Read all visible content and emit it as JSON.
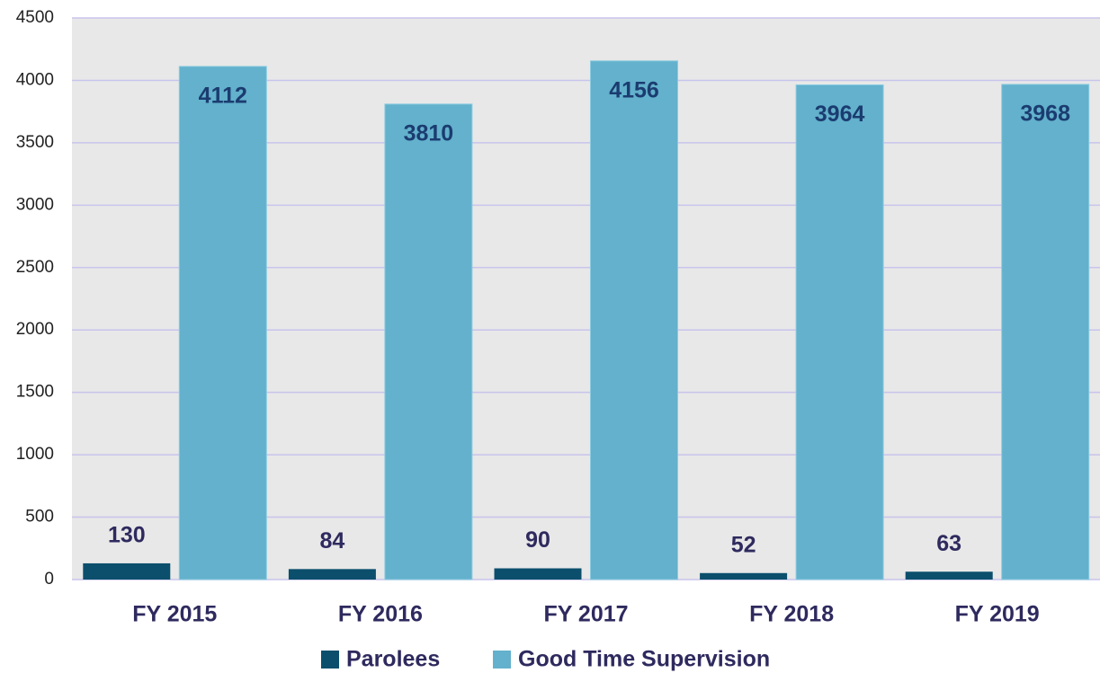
{
  "chart_data": {
    "type": "bar",
    "categories": [
      "FY 2015",
      "FY 2016",
      "FY 2017",
      "FY 2018",
      "FY 2019"
    ],
    "series": [
      {
        "name": "Parolees",
        "color": "#0b4f6c",
        "values": [
          130,
          84,
          90,
          52,
          63
        ]
      },
      {
        "name": "Good Time Supervision",
        "color": "#63b1cc",
        "values": [
          4112,
          3810,
          4156,
          3964,
          3968
        ]
      }
    ],
    "ylim": [
      0,
      4500
    ],
    "yticks": [
      0,
      500,
      1000,
      1500,
      2000,
      2500,
      3000,
      3500,
      4000,
      4500
    ],
    "grid": true,
    "legend": "bottom"
  }
}
